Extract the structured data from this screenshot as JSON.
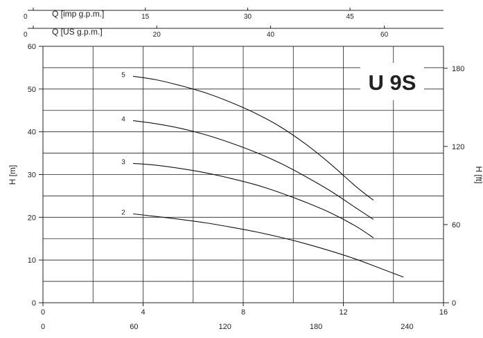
{
  "chart_data": {
    "type": "line",
    "title": "U 9S",
    "grid": true,
    "y_left": {
      "label": "H [m]",
      "range": [
        0,
        60
      ],
      "ticks": [
        0,
        10,
        20,
        30,
        40,
        50,
        60
      ]
    },
    "y_right": {
      "label": "H [ft]",
      "range": [
        0,
        196.85
      ],
      "ticks": [
        0,
        60,
        120,
        180
      ]
    },
    "x_bottom_1": {
      "label": "",
      "range": [
        0,
        16
      ],
      "ticks": [
        0,
        4,
        8,
        12,
        16
      ]
    },
    "x_bottom_2": {
      "label": "",
      "range": [
        0,
        264
      ],
      "ticks": [
        0,
        60,
        120,
        180,
        240
      ]
    },
    "x_top_1": {
      "label": "Q [imp g.p.m.]",
      "range": [
        0,
        58.7
      ],
      "ticks": [
        "0",
        "15",
        "30",
        "45"
      ]
    },
    "x_top_2": {
      "label": "Q [US g.p.m.]",
      "range": [
        0,
        70.4
      ],
      "ticks": [
        "0",
        "20",
        "40",
        "60"
      ]
    },
    "series": [
      {
        "name": "5",
        "x": [
          3.6,
          4.5,
          5.5,
          6.5,
          7.5,
          8.5,
          9.5,
          10.5,
          11.5,
          12.5,
          13.2
        ],
        "y": [
          53,
          52.2,
          50.8,
          49.1,
          46.9,
          44.3,
          41.1,
          37.1,
          32.4,
          27.2,
          24
        ]
      },
      {
        "name": "4",
        "x": [
          3.6,
          4.5,
          5.5,
          6.5,
          7.5,
          8.5,
          9.5,
          10.5,
          11.5,
          12.5,
          13.2
        ],
        "y": [
          42.6,
          41.9,
          40.8,
          39.3,
          37.4,
          35.2,
          32.6,
          29.5,
          26.1,
          22.2,
          19.5
        ]
      },
      {
        "name": "3",
        "x": [
          3.6,
          4.5,
          5.5,
          6.5,
          7.5,
          8.5,
          9.5,
          10.5,
          11.5,
          12.5,
          13.2
        ],
        "y": [
          32.6,
          32.2,
          31.4,
          30.4,
          29.1,
          27.6,
          25.7,
          23.5,
          21,
          17.9,
          15.2
        ]
      },
      {
        "name": "2",
        "x": [
          3.6,
          4.5,
          5.5,
          6.5,
          7.5,
          8.5,
          9.5,
          10.5,
          11.5,
          12.5,
          13.5,
          14.4
        ],
        "y": [
          20.8,
          20.2,
          19.5,
          18.7,
          17.7,
          16.6,
          15.3,
          13.8,
          12.1,
          10.2,
          8,
          6
        ]
      }
    ]
  }
}
